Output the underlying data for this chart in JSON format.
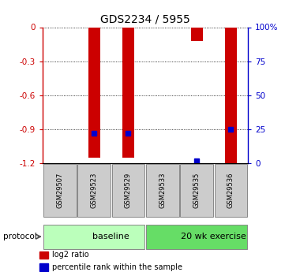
{
  "title": "GDS2234 / 5955",
  "samples": [
    "GSM29507",
    "GSM29523",
    "GSM29529",
    "GSM29533",
    "GSM29535",
    "GSM29536"
  ],
  "log2_ratio": [
    0.0,
    -1.15,
    -1.15,
    0.0,
    -0.12,
    -1.2
  ],
  "percentile_rank_pct": [
    null,
    22.0,
    22.0,
    null,
    2.0,
    25.0
  ],
  "groups": [
    {
      "label": "baseline",
      "start": 0,
      "end": 3,
      "color": "#bbffbb"
    },
    {
      "label": "20 wk exercise",
      "start": 3,
      "end": 6,
      "color": "#66dd66"
    }
  ],
  "ylim_left": [
    -1.2,
    0
  ],
  "ylim_right": [
    0,
    100
  ],
  "yticks_left": [
    0,
    -0.3,
    -0.6,
    -0.9,
    -1.2
  ],
  "ytick_labels_left": [
    "0",
    "-0.3",
    "-0.6",
    "-0.9",
    "-1.2"
  ],
  "yticks_right": [
    0,
    25,
    50,
    75,
    100
  ],
  "ytick_labels_right": [
    "0",
    "25",
    "50",
    "75",
    "100%"
  ],
  "bar_color": "#cc0000",
  "dot_color": "#0000cc",
  "bar_width": 0.35,
  "protocol_label": "protocol",
  "legend_items": [
    {
      "color": "#cc0000",
      "label": "log2 ratio"
    },
    {
      "color": "#0000cc",
      "label": "percentile rank within the sample"
    }
  ],
  "label_color_left": "#cc0000",
  "label_color_right": "#0000cc",
  "sample_box_color": "#cccccc",
  "figsize": [
    3.61,
    3.45
  ],
  "dpi": 100
}
